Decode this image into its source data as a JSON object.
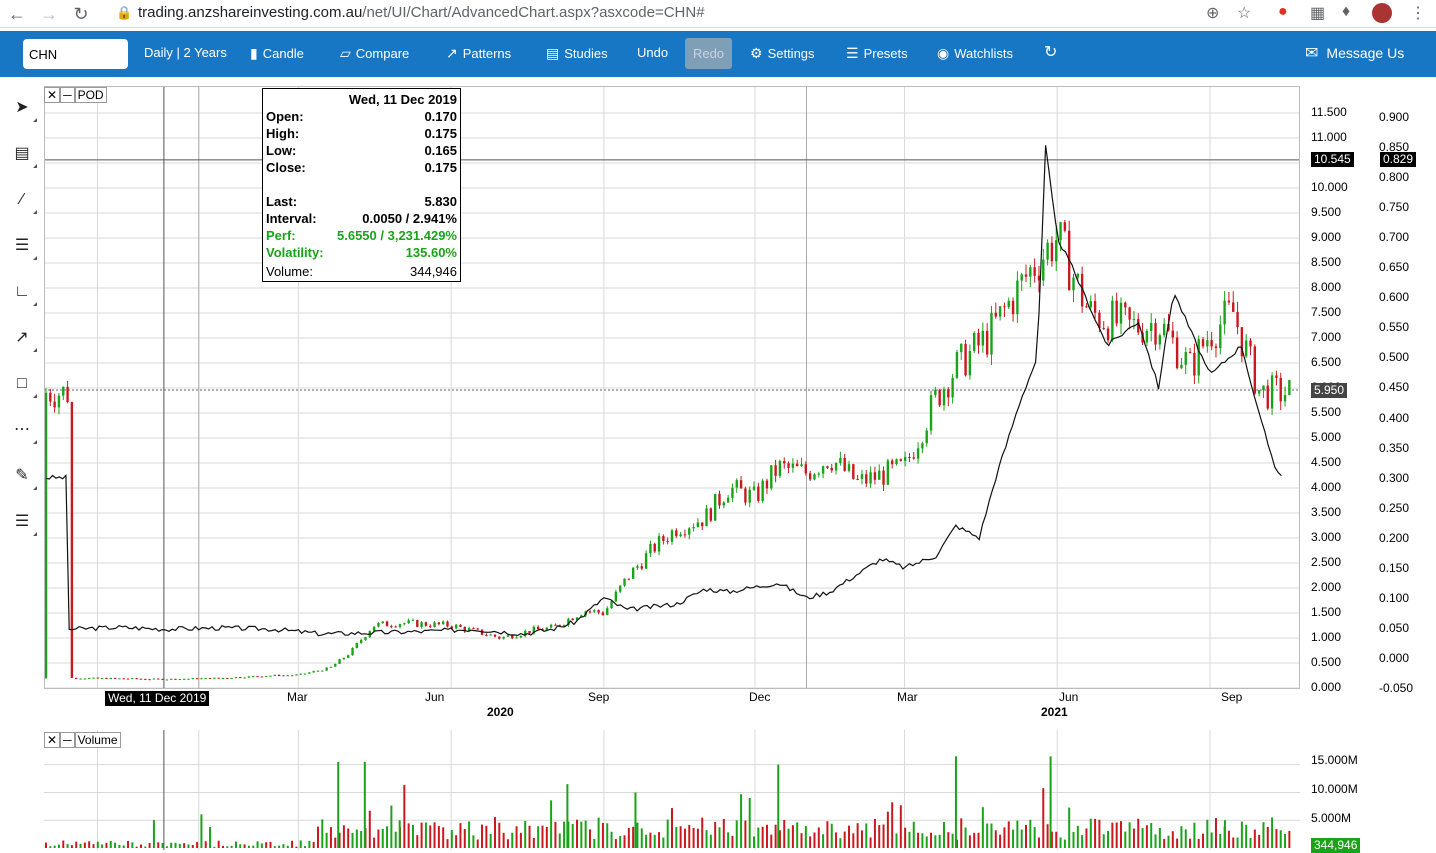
{
  "browser": {
    "url_domain": "trading.anzshareinvesting.com.au",
    "url_path": "/net/UI/Chart/AdvancedChart.aspx?asxcode=CHN#"
  },
  "toolbar": {
    "symbol_value": "CHN",
    "period_label": "Daily | 2 Years",
    "candle_label": "Candle",
    "compare_label": "Compare",
    "patterns_label": "Patterns",
    "studies_label": "Studies",
    "undo_label": "Undo",
    "redo_label": "Redo",
    "settings_label": "Settings",
    "presets_label": "Presets",
    "watchlists_label": "Watchlists",
    "message_label": "Message Us"
  },
  "tools": [
    {
      "name": "pointer-icon"
    },
    {
      "name": "crosshair-icon"
    },
    {
      "name": "trendline-icon"
    },
    {
      "name": "fibonacci-icon"
    },
    {
      "name": "gann-fan-icon"
    },
    {
      "name": "arrow-icon"
    },
    {
      "name": "rectangle-icon"
    },
    {
      "name": "channel-icon"
    },
    {
      "name": "annotate-icon"
    },
    {
      "name": "list-icon"
    }
  ],
  "price_panel": {
    "compare_symbol": "POD",
    "info": {
      "date": "Wed, 11 Dec 2019",
      "open_label": "Open:",
      "open": "0.170",
      "high_label": "High:",
      "high": "0.175",
      "low_label": "Low:",
      "low": "0.165",
      "close_label": "Close:",
      "close": "0.175",
      "last_label": "Last:",
      "last": "5.830",
      "interval_label": "Interval:",
      "interval": "0.0050 / 2.941%",
      "perf_label": "Perf:",
      "perf": "5.6550 / 3,231.429%",
      "volatility_label": "Volatility:",
      "volatility": "135.60%",
      "volume_label": "Volume:",
      "volume": "344,946"
    },
    "left_axis_ticks": [
      "11.500",
      "11.000",
      "10.500",
      "10.000",
      "9.500",
      "9.000",
      "8.500",
      "8.000",
      "7.500",
      "7.000",
      "6.500",
      "6.000",
      "5.500",
      "5.000",
      "4.500",
      "4.000",
      "3.500",
      "3.000",
      "2.500",
      "2.000",
      "1.500",
      "1.000",
      "0.500",
      "0.000"
    ],
    "right_axis_ticks": [
      "0.900",
      "0.850",
      "0.800",
      "0.750",
      "0.700",
      "0.650",
      "0.600",
      "0.550",
      "0.500",
      "0.450",
      "0.400",
      "0.350",
      "0.300",
      "0.250",
      "0.200",
      "0.150",
      "0.100",
      "0.050",
      "0.000",
      "-0.050"
    ],
    "crosshair_left_value": "10.545",
    "crosshair_right_value": "0.829",
    "last_price_tag": "5.950",
    "cursor_date": "Wed, 11 Dec 2019",
    "x_month_labels": [
      "Mar",
      "Jun",
      "Sep",
      "Dec",
      "Mar",
      "Jun",
      "Sep"
    ],
    "x_year_labels": [
      "2020",
      "2021"
    ]
  },
  "volume_panel": {
    "title": "Volume",
    "axis_ticks": [
      "15.000M",
      "10.000M",
      "5.000M"
    ],
    "current_volume": "344,946"
  },
  "chart_data": {
    "type": "candlestick",
    "series": [
      {
        "name": "CHN",
        "axis": "left",
        "points": [
          [
            "2019-10-15",
            0.2
          ],
          [
            "2019-11-15",
            0.19
          ],
          [
            "2019-12-11",
            0.175
          ],
          [
            "2020-01-15",
            0.2
          ],
          [
            "2020-02-15",
            0.25
          ],
          [
            "2020-03-01",
            0.26
          ],
          [
            "2020-03-20",
            0.4
          ],
          [
            "2020-04-01",
            0.7
          ],
          [
            "2020-04-15",
            1.25
          ],
          [
            "2020-05-01",
            1.3
          ],
          [
            "2020-06-01",
            1.25
          ],
          [
            "2020-07-01",
            1.0
          ],
          [
            "2020-07-20",
            1.15
          ],
          [
            "2020-08-01",
            1.2
          ],
          [
            "2020-08-20",
            1.55
          ],
          [
            "2020-09-01",
            1.5
          ],
          [
            "2020-09-15",
            2.2
          ],
          [
            "2020-10-01",
            2.8
          ],
          [
            "2020-10-15",
            3.2
          ],
          [
            "2020-11-01",
            3.4
          ],
          [
            "2020-11-15",
            4.0
          ],
          [
            "2020-12-01",
            3.8
          ],
          [
            "2020-12-15",
            4.4
          ],
          [
            "2021-01-01",
            4.3
          ],
          [
            "2021-01-15",
            4.6
          ],
          [
            "2021-02-01",
            4.1
          ],
          [
            "2021-03-01",
            4.4
          ],
          [
            "2021-03-20",
            5.8
          ],
          [
            "2021-04-01",
            6.4
          ],
          [
            "2021-04-20",
            7.0
          ],
          [
            "2021-05-15",
            8.3
          ],
          [
            "2021-06-01",
            9.0
          ],
          [
            "2021-06-20",
            7.5
          ],
          [
            "2021-07-15",
            7.2
          ],
          [
            "2021-08-01",
            7.3
          ],
          [
            "2021-08-20",
            6.4
          ],
          [
            "2021-09-01",
            7.1
          ],
          [
            "2021-09-15",
            7.5
          ],
          [
            "2021-10-01",
            5.9
          ]
        ]
      },
      {
        "name": "POD",
        "axis": "right",
        "points": [
          [
            "2019-10-15",
            0.048
          ],
          [
            "2019-11-15",
            0.051
          ],
          [
            "2019-12-11",
            0.048
          ],
          [
            "2020-01-15",
            0.05
          ],
          [
            "2020-02-15",
            0.048
          ],
          [
            "2020-03-15",
            0.04
          ],
          [
            "2020-04-15",
            0.042
          ],
          [
            "2020-05-15",
            0.044
          ],
          [
            "2020-06-15",
            0.048
          ],
          [
            "2020-07-15",
            0.04
          ],
          [
            "2020-08-01",
            0.048
          ],
          [
            "2020-08-15",
            0.06
          ],
          [
            "2020-09-01",
            0.1
          ],
          [
            "2020-09-15",
            0.08
          ],
          [
            "2020-10-15",
            0.09
          ],
          [
            "2020-11-01",
            0.115
          ],
          [
            "2020-11-15",
            0.11
          ],
          [
            "2020-12-15",
            0.125
          ],
          [
            "2021-01-01",
            0.1
          ],
          [
            "2021-01-15",
            0.11
          ],
          [
            "2021-02-01",
            0.14
          ],
          [
            "2021-02-15",
            0.165
          ],
          [
            "2021-03-01",
            0.15
          ],
          [
            "2021-03-20",
            0.17
          ],
          [
            "2021-04-01",
            0.22
          ],
          [
            "2021-04-15",
            0.2
          ],
          [
            "2021-04-25",
            0.3
          ],
          [
            "2021-05-10",
            0.43
          ],
          [
            "2021-05-20",
            0.5
          ],
          [
            "2021-05-25",
            0.85
          ],
          [
            "2021-06-01",
            0.7
          ],
          [
            "2021-06-10",
            0.65
          ],
          [
            "2021-07-01",
            0.52
          ],
          [
            "2021-07-20",
            0.56
          ],
          [
            "2021-08-01",
            0.45
          ],
          [
            "2021-08-10",
            0.61
          ],
          [
            "2021-09-01",
            0.47
          ],
          [
            "2021-09-20",
            0.52
          ],
          [
            "2021-10-01",
            0.4
          ],
          [
            "2021-10-10",
            0.32
          ],
          [
            "2021-10-15",
            0.3
          ]
        ]
      }
    ],
    "volume": {
      "axis_max_millions": 18,
      "spikes": [
        [
          "2020-03-25",
          15.5
        ],
        [
          "2020-04-10",
          15.5
        ],
        [
          "2020-05-01",
          5.0
        ],
        [
          "2020-08-10",
          11.5
        ],
        [
          "2020-09-20",
          10.0
        ],
        [
          "2020-12-15",
          15.0
        ],
        [
          "2021-04-01",
          16.5
        ],
        [
          "2021-05-28",
          16.5
        ],
        [
          "2021-09-10",
          5.0
        ]
      ]
    },
    "ylim_left": [
      0.0,
      11.8
    ],
    "ylim_right": [
      -0.05,
      0.92
    ],
    "grid": true,
    "colors": {
      "up": "#19a319",
      "down": "#c9191e",
      "compare_line": "#111111",
      "toolbar_bg": "#1877c4"
    }
  }
}
